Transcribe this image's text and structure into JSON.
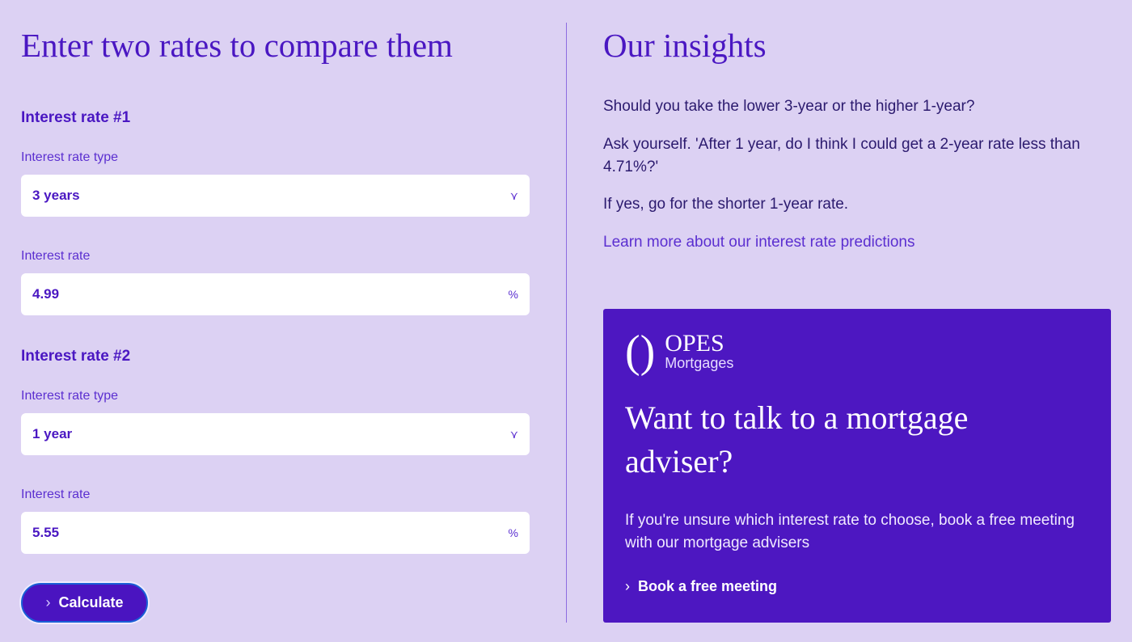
{
  "left": {
    "title": "Enter two rates to compare them",
    "rate1": {
      "heading": "Interest rate #1",
      "type_label": "Interest rate type",
      "type_value": "3 years",
      "rate_label": "Interest rate",
      "rate_value": "4.99",
      "suffix": "%"
    },
    "rate2": {
      "heading": "Interest rate #2",
      "type_label": "Interest rate type",
      "type_value": "1 year",
      "rate_label": "Interest rate",
      "rate_value": "5.55",
      "suffix": "%"
    },
    "calculate_label": "Calculate"
  },
  "right": {
    "title": "Our insights",
    "p1": "Should you take the lower 3-year or the higher 1-year?",
    "p2": "Ask yourself. 'After 1 year, do I think I could get a 2-year rate less than 4.71%?'",
    "p3": "If yes, go for the shorter 1-year rate.",
    "link": "Learn more about our interest rate predictions",
    "card": {
      "brand": "OPES",
      "brand_sub": "Mortgages",
      "heading": "Want to talk to a mortgage adviser?",
      "text": "If you're unsure which interest rate to choose, book a free meeting with our mortgage advisers",
      "cta": "Book a free meeting"
    }
  },
  "colors": {
    "background": "#dcd1f3",
    "accent": "#4a17c2",
    "card": "#4d17c1"
  }
}
